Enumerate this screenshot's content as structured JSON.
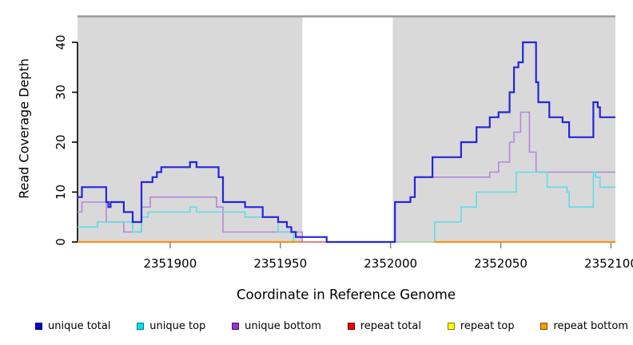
{
  "y_axis": {
    "label": "Read Coverage Depth",
    "ticks": [
      0,
      10,
      20,
      30,
      40
    ],
    "range": [
      0,
      45.3
    ]
  },
  "x_axis": {
    "label": "Coordinate in Reference Genome",
    "ticks": [
      2351900,
      2351950,
      2352000,
      2352050,
      2352100
    ],
    "range": [
      2351858,
      2352102
    ]
  },
  "chart_data": {
    "type": "line",
    "subtype": "step-coverage",
    "title": "",
    "xlabel": "Coordinate in Reference Genome",
    "ylabel": "Read Coverage Depth",
    "xlim": [
      2351858,
      2352102
    ],
    "ylim": [
      0,
      45.3
    ],
    "grid": false,
    "plot_bg": "#d9d9d9",
    "top_border_color": "#999999",
    "gap_region": {
      "x0": 2351960,
      "x1": 2352001,
      "color": "#ffffff"
    },
    "series": [
      {
        "name": "unique bottom",
        "color": "#b287de",
        "width": 1.6,
        "segments": [
          [
            [
              2351858,
              6
            ],
            [
              2351860,
              8
            ],
            [
              2351871,
              4
            ],
            [
              2351879,
              2
            ],
            [
              2351887,
              7
            ],
            [
              2351891,
              9
            ],
            [
              2351921,
              7
            ],
            [
              2351924,
              2
            ],
            [
              2351960,
              0
            ]
          ],
          [
            [
              2352019,
              13
            ],
            [
              2352045,
              14
            ],
            [
              2352049,
              16
            ],
            [
              2352054,
              20
            ],
            [
              2352056,
              22
            ],
            [
              2352059,
              26
            ],
            [
              2352063,
              18
            ],
            [
              2352066,
              14
            ],
            [
              2352102,
              14
            ]
          ]
        ]
      },
      {
        "name": "unique top",
        "color": "#5fdce8",
        "width": 1.6,
        "segments": [
          [
            [
              2351858,
              3
            ],
            [
              2351867,
              4
            ],
            [
              2351883,
              2
            ],
            [
              2351887,
              5
            ],
            [
              2351890,
              6
            ],
            [
              2351909,
              7
            ],
            [
              2351912,
              6
            ],
            [
              2351934,
              5
            ],
            [
              2351949,
              2
            ],
            [
              2351956,
              0
            ],
            [
              2351960,
              0
            ]
          ],
          [
            [
              2352020,
              0
            ],
            [
              2352020,
              4
            ],
            [
              2352032,
              7
            ],
            [
              2352039,
              10
            ],
            [
              2352057,
              14
            ],
            [
              2352071,
              11
            ],
            [
              2352080,
              10
            ],
            [
              2352081,
              7
            ],
            [
              2352092,
              14
            ],
            [
              2352093,
              13
            ],
            [
              2352095,
              11
            ],
            [
              2352102,
              11
            ]
          ]
        ]
      },
      {
        "name": "repeat total",
        "color": "#e05560",
        "width": 1.6,
        "segments": [
          [
            [
              2351959,
              0
            ],
            [
              2352001,
              0
            ]
          ]
        ]
      },
      {
        "name": "repeat top",
        "color": "#f5f500",
        "width": 1.6,
        "segments": []
      },
      {
        "name": "unique total",
        "color": "#2525dc",
        "width": 2.2,
        "segments": [
          [
            [
              2351858,
              9
            ],
            [
              2351860,
              11
            ],
            [
              2351871,
              8
            ],
            [
              2351872,
              7
            ],
            [
              2351873,
              8
            ],
            [
              2351879,
              6
            ],
            [
              2351883,
              4
            ],
            [
              2351887,
              12
            ],
            [
              2351892,
              13
            ],
            [
              2351894,
              14
            ],
            [
              2351896,
              15
            ],
            [
              2351909,
              16
            ],
            [
              2351912,
              15
            ],
            [
              2351922,
              13
            ],
            [
              2351924,
              8
            ],
            [
              2351934,
              7
            ],
            [
              2351942,
              5
            ],
            [
              2351949,
              4
            ],
            [
              2351953,
              3
            ],
            [
              2351955,
              2
            ],
            [
              2351957,
              1
            ],
            [
              2351971,
              0
            ],
            [
              2352002,
              8
            ],
            [
              2352009,
              9
            ],
            [
              2352011,
              13
            ],
            [
              2352019,
              17
            ],
            [
              2352032,
              20
            ],
            [
              2352039,
              23
            ],
            [
              2352045,
              25
            ],
            [
              2352049,
              26
            ],
            [
              2352054,
              30
            ],
            [
              2352056,
              35
            ],
            [
              2352058,
              36
            ],
            [
              2352060,
              40
            ],
            [
              2352066,
              32
            ],
            [
              2352067,
              28
            ],
            [
              2352072,
              25
            ],
            [
              2352078,
              24
            ],
            [
              2352081,
              21
            ],
            [
              2352092,
              28
            ],
            [
              2352094,
              27
            ],
            [
              2352095,
              25
            ],
            [
              2352102,
              25
            ]
          ]
        ]
      },
      {
        "name": "repeat bottom",
        "color": "#ff9015",
        "width": 2.2,
        "segments": [
          [
            [
              2351858,
              0
            ],
            [
              2351959,
              0
            ]
          ],
          [
            [
              2352020,
              0
            ],
            [
              2352102,
              0
            ]
          ]
        ]
      }
    ],
    "overlap_segment": {
      "color": "#97d59b",
      "width": 1.6,
      "points": [
        [
          2352002,
          0
        ],
        [
          2352020,
          0
        ]
      ]
    }
  },
  "legend": {
    "items": [
      {
        "label": "unique total",
        "fill": "#0000cc",
        "border": "#00006e"
      },
      {
        "label": "unique top",
        "fill": "#00e0e8",
        "border": "#007d85"
      },
      {
        "label": "unique bottom",
        "fill": "#9b30d0",
        "border": "#4d1268"
      },
      {
        "label": "repeat total",
        "fill": "#ee0000",
        "border": "#6e0000"
      },
      {
        "label": "repeat top",
        "fill": "#ffff00",
        "border": "#7d7d00"
      },
      {
        "label": "repeat bottom",
        "fill": "#ff9900",
        "border": "#7d4b00"
      }
    ]
  }
}
